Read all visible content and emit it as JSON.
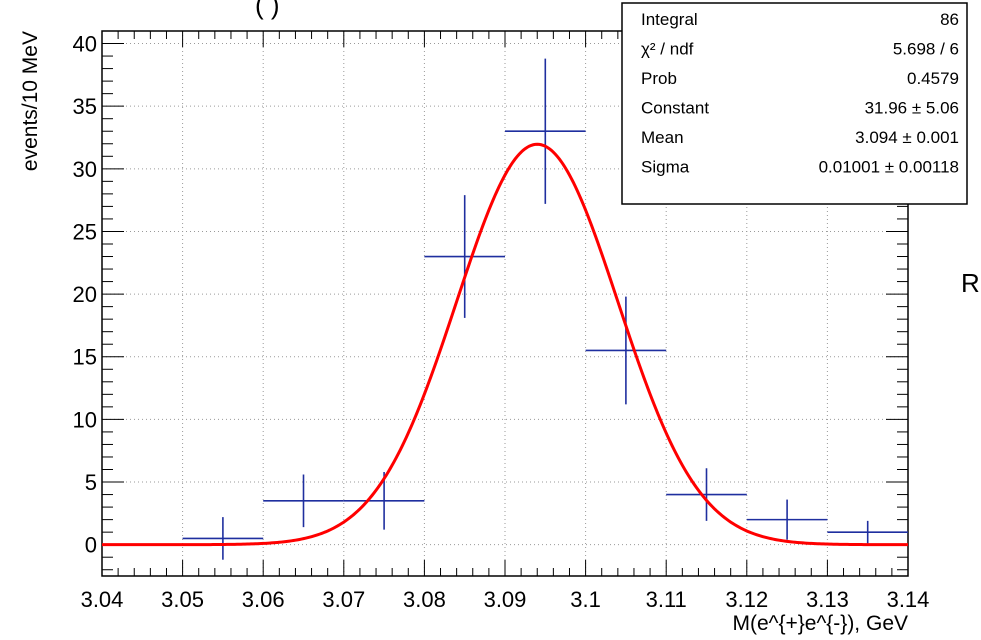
{
  "chart_data": {
    "type": "scatter",
    "title": "",
    "xlabel": "M(e^{+}e^{-}), GeV",
    "ylabel": "events/10 MeV",
    "xlim": [
      3.04,
      3.14
    ],
    "ylim": [
      -2.5,
      41
    ],
    "x_ticks": [
      3.04,
      3.05,
      3.06,
      3.07,
      3.08,
      3.09,
      3.1,
      3.11,
      3.12,
      3.13,
      3.14
    ],
    "x_tick_labels": [
      "3.04",
      "3.05",
      "3.06",
      "3.07",
      "3.08",
      "3.09",
      "3.1",
      "3.11",
      "3.12",
      "3.13",
      "3.14"
    ],
    "y_ticks": [
      0,
      5,
      10,
      15,
      20,
      25,
      30,
      35,
      40
    ],
    "y_tick_labels": [
      "0",
      "5",
      "10",
      "15",
      "20",
      "25",
      "30",
      "35",
      "40"
    ],
    "grid": true,
    "series": [
      {
        "kind": "histogram-points",
        "color": "#1f2f9f",
        "points": [
          {
            "x": 3.055,
            "xerr": 0.005,
            "y": 0.5,
            "yerr": 1.7
          },
          {
            "x": 3.065,
            "xerr": 0.005,
            "y": 3.5,
            "yerr": 2.1
          },
          {
            "x": 3.075,
            "xerr": 0.005,
            "y": 3.5,
            "yerr": 2.3
          },
          {
            "x": 3.085,
            "xerr": 0.005,
            "y": 23.0,
            "yerr": 4.9
          },
          {
            "x": 3.095,
            "xerr": 0.005,
            "y": 33.0,
            "yerr": 5.8
          },
          {
            "x": 3.105,
            "xerr": 0.005,
            "y": 15.5,
            "yerr": 4.3
          },
          {
            "x": 3.115,
            "xerr": 0.005,
            "y": 4.0,
            "yerr": 2.1
          },
          {
            "x": 3.125,
            "xerr": 0.005,
            "y": 2.0,
            "yerr": 1.6
          },
          {
            "x": 3.135,
            "xerr": 0.005,
            "y": 1.0,
            "yerr": 0.9
          }
        ]
      },
      {
        "kind": "gaussian-fit",
        "color": "#ff0000",
        "constant": 31.96,
        "mean": 3.094,
        "sigma": 0.01001
      }
    ],
    "stats_box": {
      "placement": "top-right",
      "rows": [
        {
          "label": "Integral",
          "value": "86"
        },
        {
          "label": "χ² / ndf",
          "value": "5.698 / 6"
        },
        {
          "label": "Prob",
          "value": "0.4579"
        },
        {
          "label": "Constant",
          "value": "31.96 ± 5.06"
        },
        {
          "label": "Mean",
          "value": "3.094 ± 0.001"
        },
        {
          "label": "Sigma",
          "value": "0.01001 ± 0.00118"
        }
      ]
    }
  },
  "page": {
    "cropped_title_fragment": "(    )",
    "side_text": "R"
  }
}
